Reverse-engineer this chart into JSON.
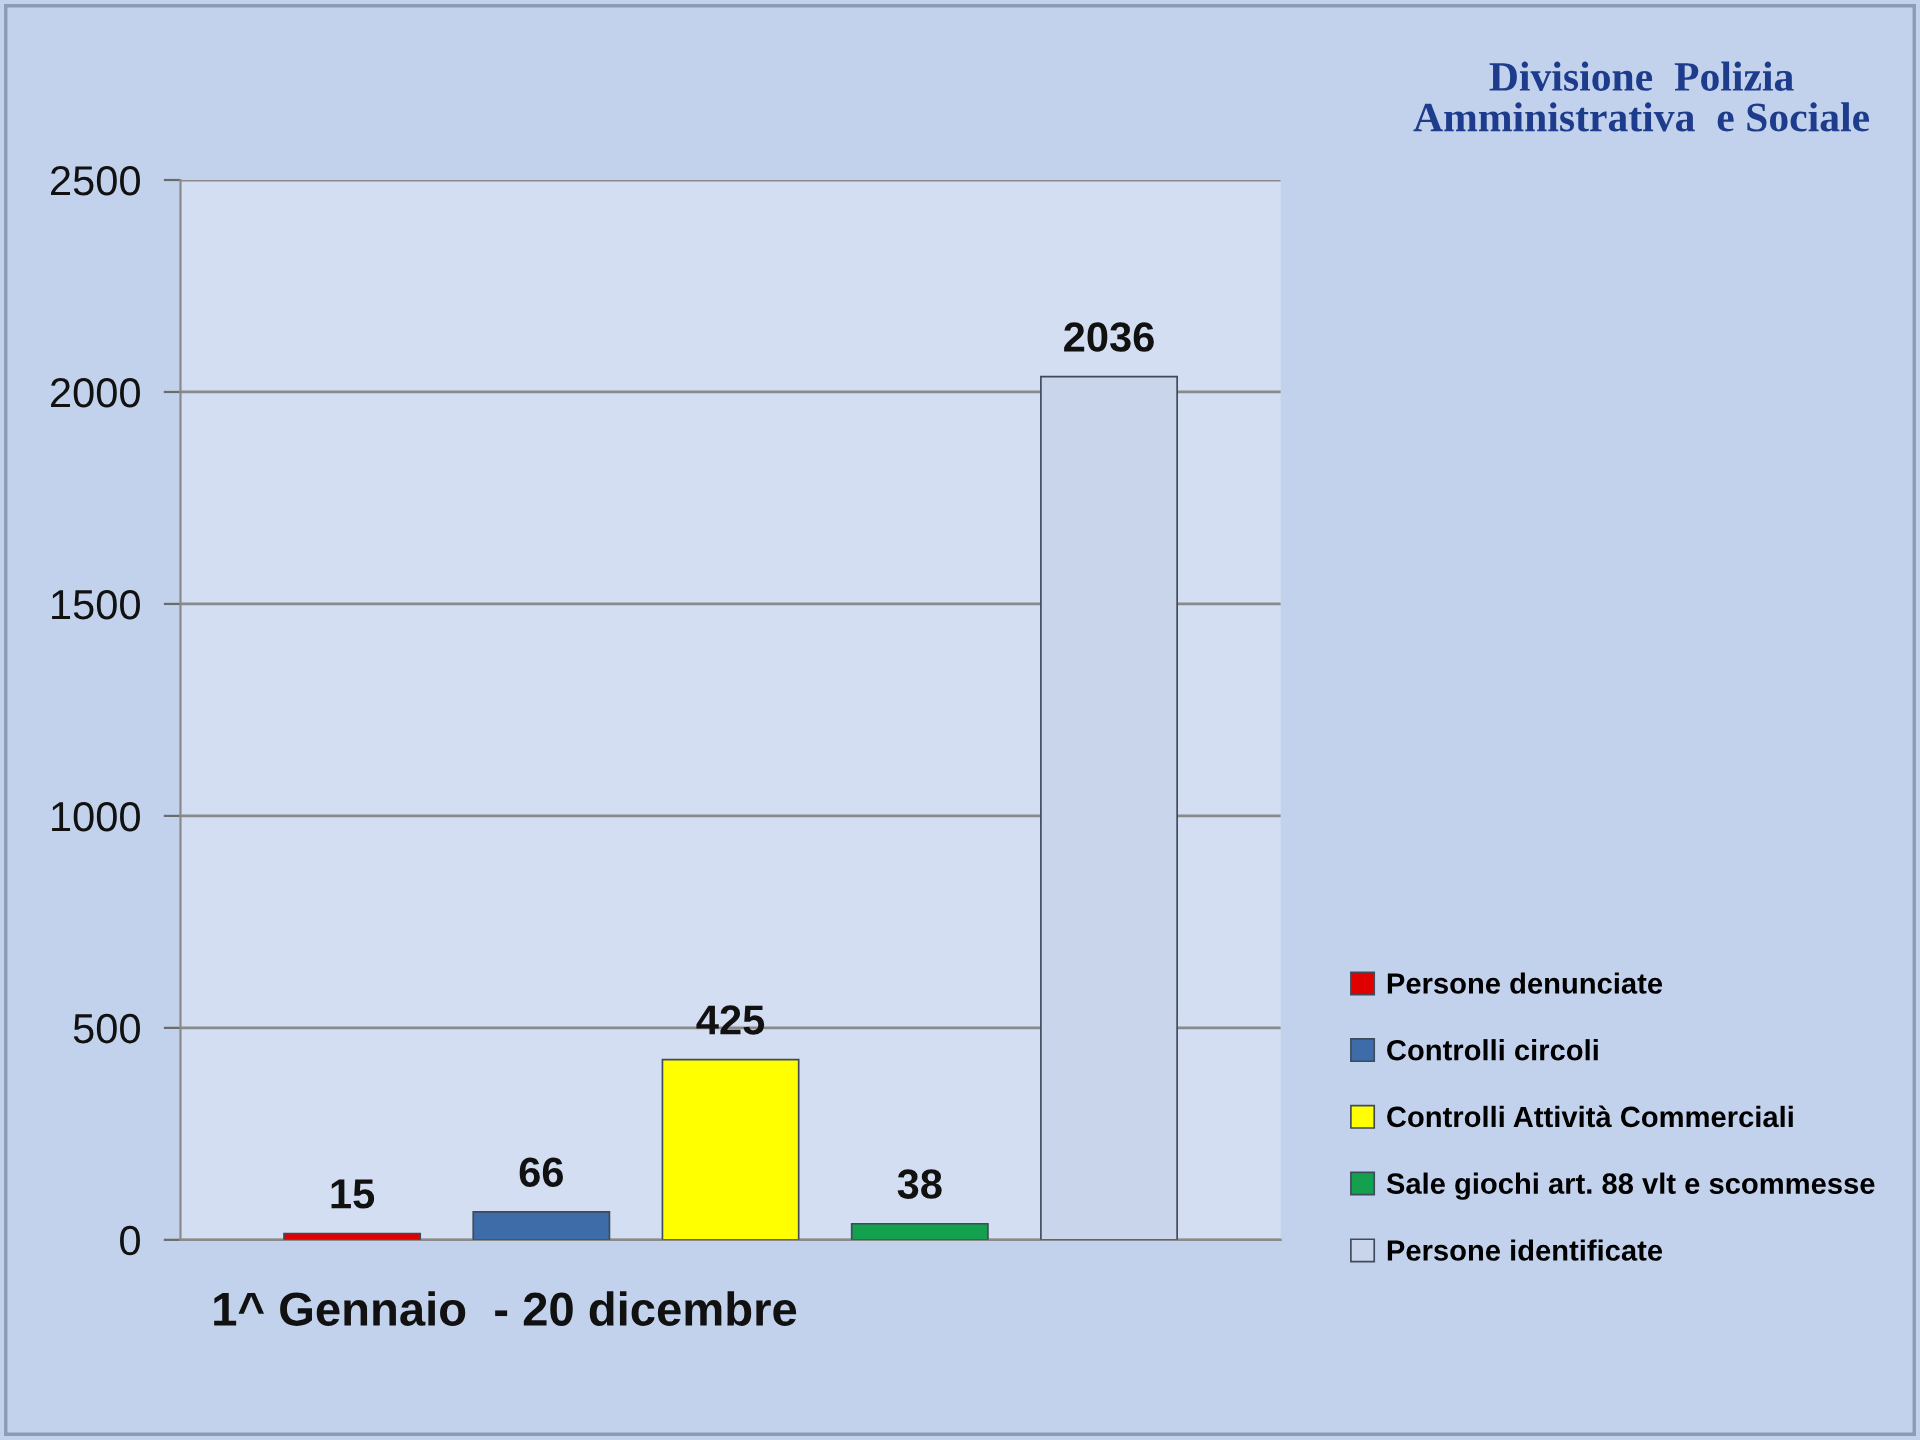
{
  "chart_data": {
    "type": "bar",
    "title": "Divisione  Polizia\nAmministrativa  e Sociale",
    "annotations": [
      "1^ Gennaio  - 20 dicembre"
    ],
    "categories": [
      null
    ],
    "series": [
      {
        "name": "Persone denunciate",
        "color": "#e00000",
        "values": [
          15
        ]
      },
      {
        "name": "Controlli circoli",
        "color": "#3d6ca8",
        "values": [
          66
        ]
      },
      {
        "name": "Controlli Attività Commerciali",
        "color": "#ffff00",
        "values": [
          425
        ]
      },
      {
        "name": "Sale giochi art. 88 vlt e scommesse",
        "color": "#13a14f",
        "values": [
          38
        ]
      },
      {
        "name": "Persone identificate",
        "color": "#c9d5ea",
        "values": [
          2036
        ]
      }
    ],
    "ylim": [
      0,
      2500
    ],
    "yticks": [
      0,
      500,
      1000,
      1500,
      2000,
      2500
    ],
    "grid": "y",
    "legend": "bottom right",
    "data_labels": true,
    "tick_labels": "y"
  }
}
